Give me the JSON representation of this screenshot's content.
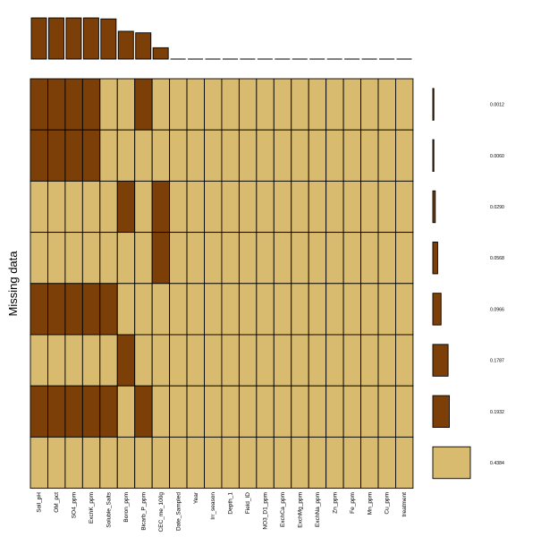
{
  "chart_data": {
    "type": "heatmap",
    "ylabel": "Missing data",
    "columns": [
      "Soil_pH",
      "OM_pct",
      "SO4_ppm",
      "ExchK_ppm",
      "Soluble_Salts",
      "Boron_ppm",
      "Bicarb_P_ppm",
      "CEC_me_100g",
      "Date_Sampled",
      "Year",
      "Irr_season",
      "Depth_1",
      "Field_ID",
      "NO3_D1_ppm",
      "ExchCa_ppm",
      "ExchMg_ppm",
      "ExchNa_ppm",
      "Zn_ppm",
      "Fe_ppm",
      "Mn_ppm",
      "Cu_ppm",
      "treatment"
    ],
    "column_missing_counts": [
      8,
      8,
      8,
      8,
      7.8,
      5.4,
      5.1,
      2.2,
      0,
      0,
      0,
      0,
      0,
      0,
      0,
      0,
      0,
      0,
      0,
      0,
      0,
      0
    ],
    "patterns": [
      {
        "missing": [
          1,
          1,
          1,
          1,
          0,
          0,
          1,
          0,
          0,
          0,
          0,
          0,
          0,
          0,
          0,
          0,
          0,
          0,
          0,
          0,
          0,
          0
        ],
        "proportion": 0.0012,
        "label": "0.0012"
      },
      {
        "missing": [
          1,
          1,
          1,
          1,
          0,
          0,
          0,
          0,
          0,
          0,
          0,
          0,
          0,
          0,
          0,
          0,
          0,
          0,
          0,
          0,
          0,
          0
        ],
        "proportion": 0.006,
        "label": "0.0060"
      },
      {
        "missing": [
          0,
          0,
          0,
          0,
          0,
          1,
          0,
          1,
          0,
          0,
          0,
          0,
          0,
          0,
          0,
          0,
          0,
          0,
          0,
          0,
          0,
          0
        ],
        "proportion": 0.029,
        "label": "0.0290"
      },
      {
        "missing": [
          0,
          0,
          0,
          0,
          0,
          0,
          0,
          1,
          0,
          0,
          0,
          0,
          0,
          0,
          0,
          0,
          0,
          0,
          0,
          0,
          0,
          0
        ],
        "proportion": 0.0568,
        "label": "0.0568"
      },
      {
        "missing": [
          1,
          1,
          1,
          1,
          1,
          0,
          0,
          0,
          0,
          0,
          0,
          0,
          0,
          0,
          0,
          0,
          0,
          0,
          0,
          0,
          0,
          0
        ],
        "proportion": 0.0966,
        "label": "0.0966"
      },
      {
        "missing": [
          0,
          0,
          0,
          0,
          0,
          1,
          0,
          0,
          0,
          0,
          0,
          0,
          0,
          0,
          0,
          0,
          0,
          0,
          0,
          0,
          0,
          0
        ],
        "proportion": 0.1787,
        "label": "0.1787"
      },
      {
        "missing": [
          1,
          1,
          1,
          1,
          1,
          0,
          1,
          0,
          0,
          0,
          0,
          0,
          0,
          0,
          0,
          0,
          0,
          0,
          0,
          0,
          0,
          0
        ],
        "proportion": 0.1932,
        "label": "0.1932"
      },
      {
        "missing": [
          0,
          0,
          0,
          0,
          0,
          0,
          0,
          0,
          0,
          0,
          0,
          0,
          0,
          0,
          0,
          0,
          0,
          0,
          0,
          0,
          0,
          0
        ],
        "proportion": 0.4384,
        "label": "0.4384"
      }
    ],
    "colors": {
      "missing": "#7b3f07",
      "observed": "#d9bb6f",
      "outline": "#000000"
    }
  }
}
